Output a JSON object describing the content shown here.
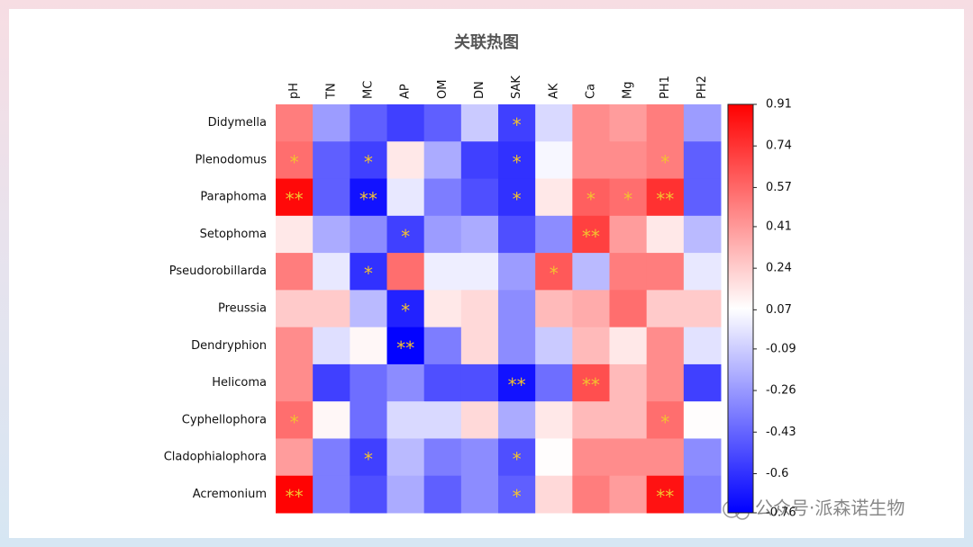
{
  "chart_data": {
    "type": "heatmap",
    "title": "关联热图",
    "colormap": "bwr",
    "x_categories": [
      "pH",
      "TN",
      "MC",
      "AP",
      "OM",
      "DN",
      "SAK",
      "AK",
      "Ca",
      "Mg",
      "PH1",
      "PH2"
    ],
    "y_categories": [
      "Didymella",
      "Plenodomus",
      "Paraphoma",
      "Setophoma",
      "Pseudorobillarda",
      "Preussia",
      "Dendryphion",
      "Helicoma",
      "Cyphellophora",
      "Cladophialophora",
      "Acremonium"
    ],
    "values": [
      [
        0.5,
        -0.25,
        -0.45,
        -0.55,
        -0.45,
        -0.1,
        -0.55,
        -0.05,
        0.45,
        0.4,
        0.5,
        -0.25
      ],
      [
        0.55,
        -0.45,
        -0.55,
        0.15,
        -0.2,
        -0.55,
        -0.6,
        0.05,
        0.45,
        0.45,
        0.5,
        -0.45
      ],
      [
        0.88,
        -0.45,
        -0.7,
        0.0,
        -0.35,
        -0.5,
        -0.6,
        0.15,
        0.6,
        0.55,
        0.75,
        -0.45
      ],
      [
        0.15,
        -0.2,
        -0.3,
        -0.55,
        -0.25,
        -0.2,
        -0.5,
        -0.3,
        0.7,
        0.4,
        0.15,
        -0.15
      ],
      [
        0.5,
        0.0,
        -0.6,
        0.55,
        0.02,
        0.02,
        -0.25,
        0.62,
        -0.15,
        0.5,
        0.5,
        0.0
      ],
      [
        0.25,
        0.25,
        -0.15,
        -0.65,
        0.15,
        0.2,
        -0.3,
        0.3,
        0.35,
        0.55,
        0.25,
        0.25
      ],
      [
        0.45,
        -0.03,
        0.1,
        -0.75,
        -0.35,
        0.2,
        -0.3,
        -0.1,
        0.3,
        0.15,
        0.45,
        -0.02
      ],
      [
        0.45,
        -0.55,
        -0.4,
        -0.3,
        -0.5,
        -0.5,
        -0.7,
        -0.4,
        0.65,
        0.3,
        0.45,
        -0.55
      ],
      [
        0.55,
        0.1,
        -0.4,
        -0.05,
        -0.05,
        0.2,
        -0.2,
        0.15,
        0.3,
        0.3,
        0.55,
        0.08
      ],
      [
        0.4,
        -0.35,
        -0.55,
        -0.15,
        -0.35,
        -0.3,
        -0.5,
        0.08,
        0.45,
        0.45,
        0.45,
        -0.3
      ],
      [
        0.9,
        -0.35,
        -0.5,
        -0.2,
        -0.45,
        -0.3,
        -0.45,
        0.2,
        0.5,
        0.4,
        0.85,
        -0.35
      ]
    ],
    "annotations": [
      [
        null,
        null,
        null,
        null,
        null,
        null,
        "*",
        null,
        null,
        null,
        null,
        null
      ],
      [
        "*",
        null,
        "*",
        null,
        null,
        null,
        "*",
        null,
        null,
        null,
        "*",
        null
      ],
      [
        "**",
        null,
        "**",
        null,
        null,
        null,
        "*",
        null,
        "*",
        "*",
        "**",
        null
      ],
      [
        null,
        null,
        null,
        "*",
        null,
        null,
        null,
        null,
        "**",
        null,
        null,
        null
      ],
      [
        null,
        null,
        "*",
        null,
        null,
        null,
        null,
        "*",
        null,
        null,
        null,
        null
      ],
      [
        null,
        null,
        null,
        "*",
        null,
        null,
        null,
        null,
        null,
        null,
        null,
        null
      ],
      [
        null,
        null,
        null,
        "**",
        null,
        null,
        null,
        null,
        null,
        null,
        null,
        null
      ],
      [
        null,
        null,
        null,
        null,
        null,
        null,
        "**",
        null,
        "**",
        null,
        null,
        null
      ],
      [
        "*",
        null,
        null,
        null,
        null,
        null,
        null,
        null,
        null,
        null,
        "*",
        null
      ],
      [
        null,
        null,
        "*",
        null,
        null,
        null,
        "*",
        null,
        null,
        null,
        null,
        null
      ],
      [
        "**",
        null,
        null,
        null,
        null,
        null,
        "*",
        null,
        null,
        null,
        "**",
        null
      ]
    ],
    "zlim": [
      -0.76,
      0.91
    ],
    "zticks": [
      0.91,
      0.74,
      0.57,
      0.41,
      0.24,
      0.07,
      -0.09,
      -0.26,
      -0.43,
      -0.6,
      -0.76
    ]
  },
  "watermark": "公众号·派森诺生物"
}
